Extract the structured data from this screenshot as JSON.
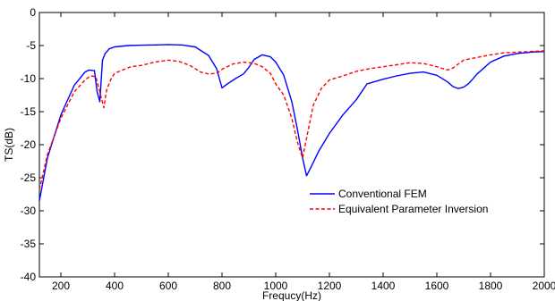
{
  "chart_data": {
    "type": "line",
    "xlabel": "Frequcy(Hz)",
    "ylabel": "TS(dB)",
    "xlim": [
      120,
      2000
    ],
    "ylim": [
      -40,
      0
    ],
    "xticks": [
      200,
      400,
      600,
      800,
      1000,
      1200,
      1400,
      1600,
      1800,
      2000
    ],
    "yticks": [
      0,
      -5,
      -10,
      -15,
      -20,
      -25,
      -30,
      -35,
      -40
    ],
    "grid": false,
    "legend_position": "lower-right",
    "series": [
      {
        "name": "Conventional FEM",
        "color": "#0000ff",
        "style": "solid",
        "x": [
          120,
          150,
          200,
          250,
          290,
          305,
          325,
          335,
          345,
          355,
          365,
          380,
          400,
          450,
          500,
          550,
          600,
          650,
          700,
          750,
          780,
          800,
          820,
          850,
          880,
          900,
          920,
          950,
          980,
          1000,
          1030,
          1060,
          1080,
          1100,
          1115,
          1130,
          1160,
          1200,
          1250,
          1300,
          1340,
          1400,
          1450,
          1500,
          1550,
          1600,
          1640,
          1660,
          1680,
          1700,
          1720,
          1750,
          1800,
          1850,
          1900,
          1950,
          2000
        ],
        "y": [
          -28.5,
          -22,
          -15.5,
          -11,
          -9,
          -8.7,
          -8.8,
          -12,
          -13.5,
          -7.2,
          -6.2,
          -5.5,
          -5.2,
          -5.0,
          -4.95,
          -4.9,
          -4.85,
          -4.9,
          -5.2,
          -6.5,
          -8.5,
          -11.4,
          -10.8,
          -10,
          -9.3,
          -8.3,
          -7.1,
          -6.4,
          -6.7,
          -7.5,
          -9.5,
          -13.5,
          -17.5,
          -22,
          -24.7,
          -23.5,
          -21,
          -18.3,
          -15.5,
          -13.2,
          -10.8,
          -10.1,
          -9.6,
          -9.2,
          -9.0,
          -9.5,
          -10.5,
          -11.2,
          -11.5,
          -11.3,
          -10.7,
          -9.3,
          -7.5,
          -6.6,
          -6.2,
          -6.0,
          -5.9
        ]
      },
      {
        "name": "Equivalent Parameter Inversion",
        "color": "#ff0000",
        "style": "dashed",
        "x": [
          120,
          150,
          200,
          250,
          290,
          310,
          330,
          345,
          360,
          370,
          385,
          400,
          430,
          460,
          500,
          550,
          600,
          640,
          680,
          720,
          750,
          780,
          800,
          840,
          880,
          920,
          950,
          980,
          1000,
          1030,
          1060,
          1080,
          1100,
          1115,
          1140,
          1170,
          1200,
          1250,
          1300,
          1350,
          1400,
          1450,
          1500,
          1550,
          1600,
          1640,
          1660,
          1680,
          1700,
          1750,
          1800,
          1850,
          1900,
          1950,
          2000
        ],
        "y": [
          -26.8,
          -21.5,
          -16,
          -12,
          -10.2,
          -9.6,
          -9.7,
          -12,
          -14.4,
          -11.8,
          -10.2,
          -9.2,
          -8.7,
          -8.2,
          -8.0,
          -7.5,
          -7.2,
          -7.4,
          -8.0,
          -9.0,
          -9.3,
          -9.2,
          -8.6,
          -7.8,
          -7.5,
          -7.7,
          -8.2,
          -9.2,
          -10.8,
          -12.5,
          -16,
          -19.5,
          -22,
          -19,
          -14,
          -11.5,
          -10.2,
          -9.6,
          -8.9,
          -8.5,
          -8.2,
          -7.9,
          -7.6,
          -7.7,
          -8.2,
          -8.7,
          -8.4,
          -7.8,
          -7.2,
          -6.8,
          -6.4,
          -6.1,
          -6.0,
          -5.9,
          -5.8
        ]
      }
    ]
  }
}
